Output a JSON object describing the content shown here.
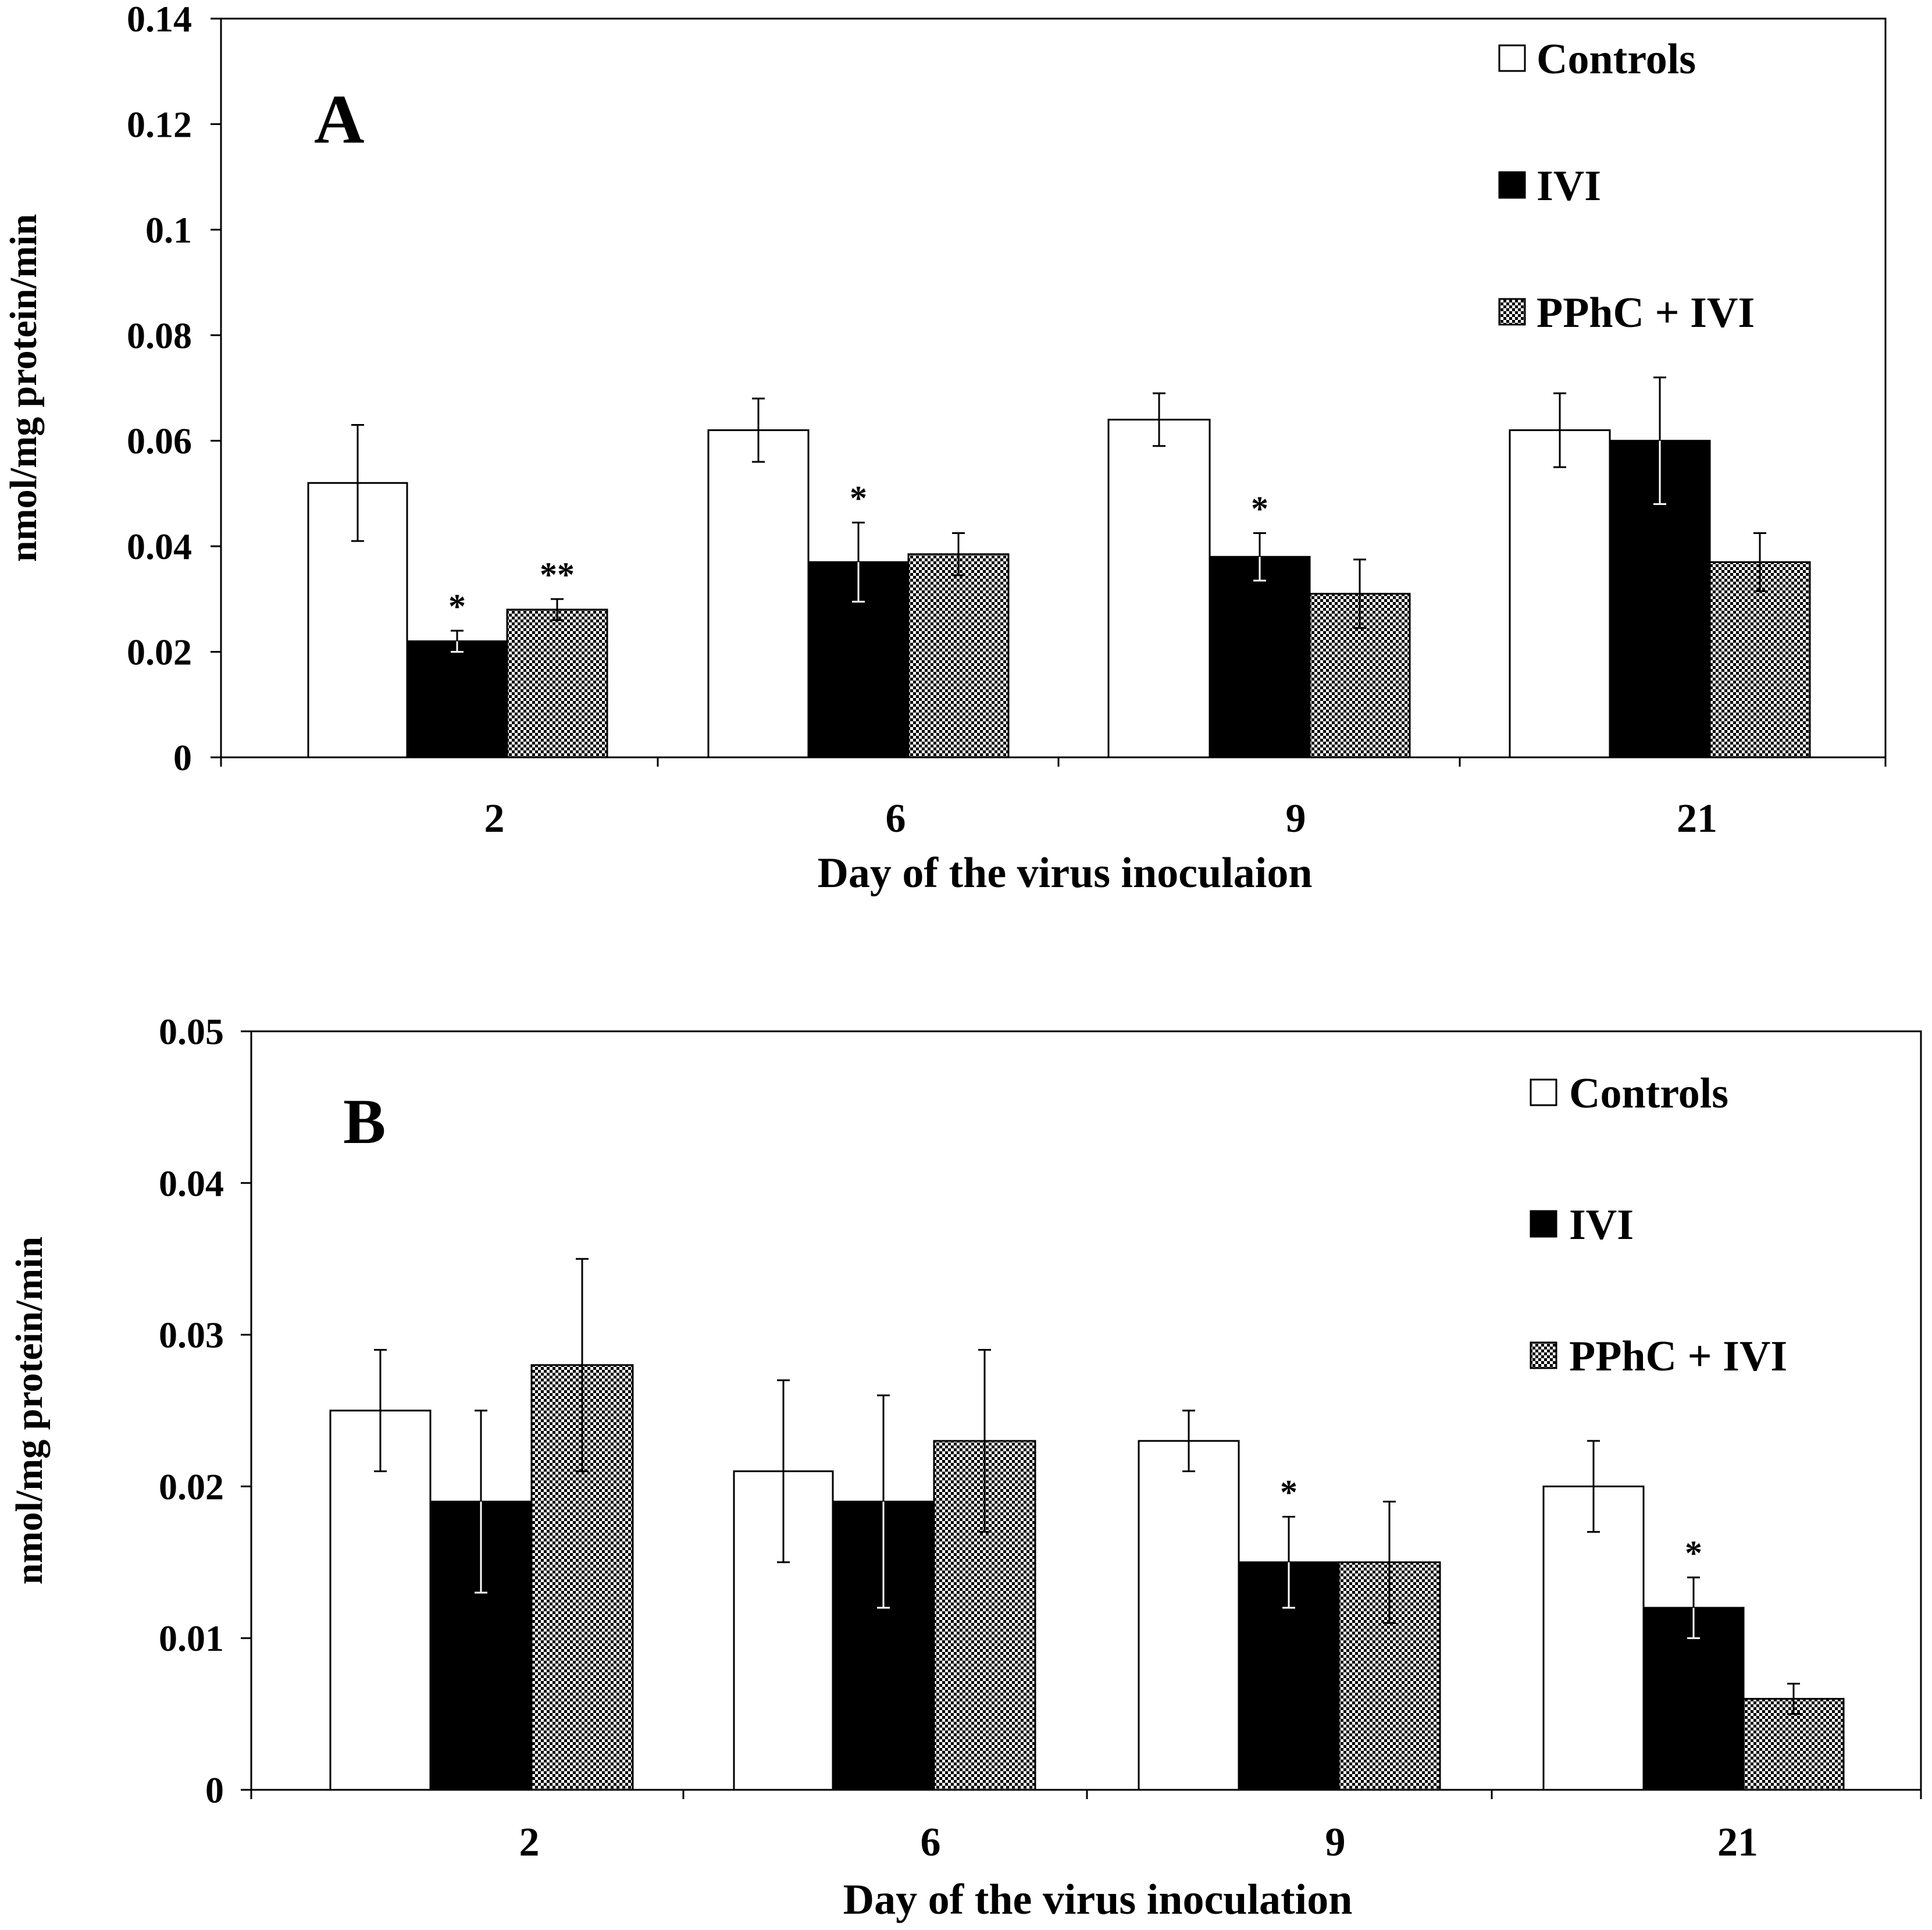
{
  "colors": {
    "controls": "#ffffff",
    "ivi": "#000000",
    "pphc_ivi": "checker",
    "axis": "#000000"
  },
  "chart_data": [
    {
      "type": "bar",
      "panel_label": "A",
      "ylabel": "nmol/mg protein/min",
      "xlabel": "Day of the virus inoculaion",
      "ylim": [
        0,
        0.14
      ],
      "yticks": [
        0,
        0.02,
        0.04,
        0.06,
        0.08,
        0.1,
        0.12,
        0.14
      ],
      "ytick_labels": [
        "0",
        "0.02",
        "0.04",
        "0.06",
        "0.08",
        "0.1",
        "0.12",
        "0.14"
      ],
      "grid": false,
      "legend_position": "top-right",
      "categories": [
        "2",
        "6",
        "9",
        "21"
      ],
      "series": [
        {
          "name": "Controls",
          "fill": "white",
          "values": [
            0.052,
            0.062,
            0.064,
            0.062
          ],
          "errors": [
            0.011,
            0.006,
            0.005,
            0.007
          ],
          "annotations": [
            "",
            "",
            "",
            ""
          ]
        },
        {
          "name": "IVI",
          "fill": "black",
          "values": [
            0.022,
            0.037,
            0.038,
            0.06
          ],
          "errors": [
            0.002,
            0.0075,
            0.0045,
            0.012
          ],
          "annotations": [
            "*",
            "*",
            "*",
            ""
          ]
        },
        {
          "name": "PPhC + IVI",
          "fill": "checker",
          "values": [
            0.028,
            0.0385,
            0.031,
            0.037
          ],
          "errors": [
            0.002,
            0.004,
            0.0065,
            0.0055
          ],
          "annotations": [
            "**",
            "",
            "",
            ""
          ]
        }
      ]
    },
    {
      "type": "bar",
      "panel_label": "B",
      "ylabel": "nmol/mg protein/min",
      "xlabel": "Day of the virus inoculation",
      "ylim": [
        0,
        0.05
      ],
      "yticks": [
        0,
        0.01,
        0.02,
        0.03,
        0.04,
        0.05
      ],
      "ytick_labels": [
        "0",
        "0.01",
        "0.02",
        "0.03",
        "0.04",
        "0.05"
      ],
      "grid": false,
      "legend_position": "top-right",
      "categories": [
        "2",
        "6",
        "9",
        "21"
      ],
      "series": [
        {
          "name": "Controls",
          "fill": "white",
          "values": [
            0.025,
            0.021,
            0.023,
            0.02
          ],
          "errors": [
            0.004,
            0.006,
            0.002,
            0.003
          ],
          "annotations": [
            "",
            "",
            "",
            ""
          ]
        },
        {
          "name": "IVI",
          "fill": "black",
          "values": [
            0.019,
            0.019,
            0.015,
            0.012
          ],
          "errors": [
            0.006,
            0.007,
            0.003,
            0.002
          ],
          "annotations": [
            "",
            "",
            "*",
            "*"
          ]
        },
        {
          "name": "PPhC + IVI",
          "fill": "checker",
          "values": [
            0.028,
            0.023,
            0.015,
            0.006
          ],
          "errors": [
            0.007,
            0.006,
            0.004,
            0.001
          ],
          "annotations": [
            "",
            "",
            "",
            ""
          ]
        }
      ]
    }
  ]
}
